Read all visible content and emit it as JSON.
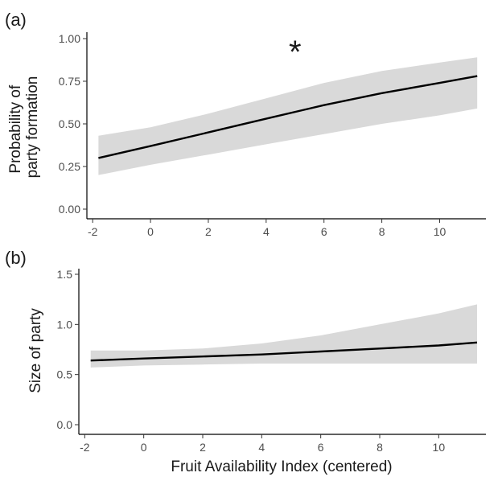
{
  "chart_data": [
    {
      "panel_label": "(a)",
      "type": "line",
      "ylabel_lines": [
        "Probability of",
        "party formation"
      ],
      "xlabel": "",
      "annotation": "*",
      "annotation_x": 5,
      "xlim": [
        -2.2,
        11.6
      ],
      "ylim": [
        0,
        1.0
      ],
      "xticks": [
        "-2",
        "0",
        "2",
        "4",
        "6",
        "8",
        "10"
      ],
      "xtick_values": [
        -2,
        0,
        2,
        4,
        6,
        8,
        10
      ],
      "yticks": [
        "0.00",
        "0.25",
        "0.50",
        "0.75",
        "1.00"
      ],
      "ytick_values": [
        0,
        0.25,
        0.5,
        0.75,
        1.0
      ],
      "x": [
        -1.8,
        0,
        2,
        4,
        6,
        8,
        10,
        11.3
      ],
      "fit": [
        0.3,
        0.37,
        0.45,
        0.53,
        0.61,
        0.68,
        0.74,
        0.78
      ],
      "lower": [
        0.2,
        0.26,
        0.32,
        0.38,
        0.44,
        0.5,
        0.55,
        0.59
      ],
      "upper": [
        0.43,
        0.48,
        0.56,
        0.65,
        0.74,
        0.81,
        0.86,
        0.89
      ]
    },
    {
      "panel_label": "(b)",
      "type": "line",
      "ylabel_lines": [
        "Size of party"
      ],
      "xlabel": "Fruit Availability Index (centered)",
      "xlim": [
        -2.2,
        11.6
      ],
      "ylim": [
        0,
        1.5
      ],
      "xticks": [
        "-2",
        "0",
        "2",
        "4",
        "6",
        "8",
        "10"
      ],
      "xtick_values": [
        -2,
        0,
        2,
        4,
        6,
        8,
        10
      ],
      "yticks": [
        "0.0",
        "0.5",
        "1.0",
        "1.5"
      ],
      "ytick_values": [
        0,
        0.5,
        1.0,
        1.5
      ],
      "x": [
        -1.8,
        0,
        2,
        4,
        6,
        8,
        10,
        11.3
      ],
      "fit": [
        0.64,
        0.66,
        0.68,
        0.7,
        0.73,
        0.76,
        0.79,
        0.82
      ],
      "lower": [
        0.57,
        0.59,
        0.6,
        0.61,
        0.61,
        0.61,
        0.61,
        0.61
      ],
      "upper": [
        0.74,
        0.74,
        0.76,
        0.81,
        0.89,
        1.0,
        1.11,
        1.2
      ]
    }
  ]
}
